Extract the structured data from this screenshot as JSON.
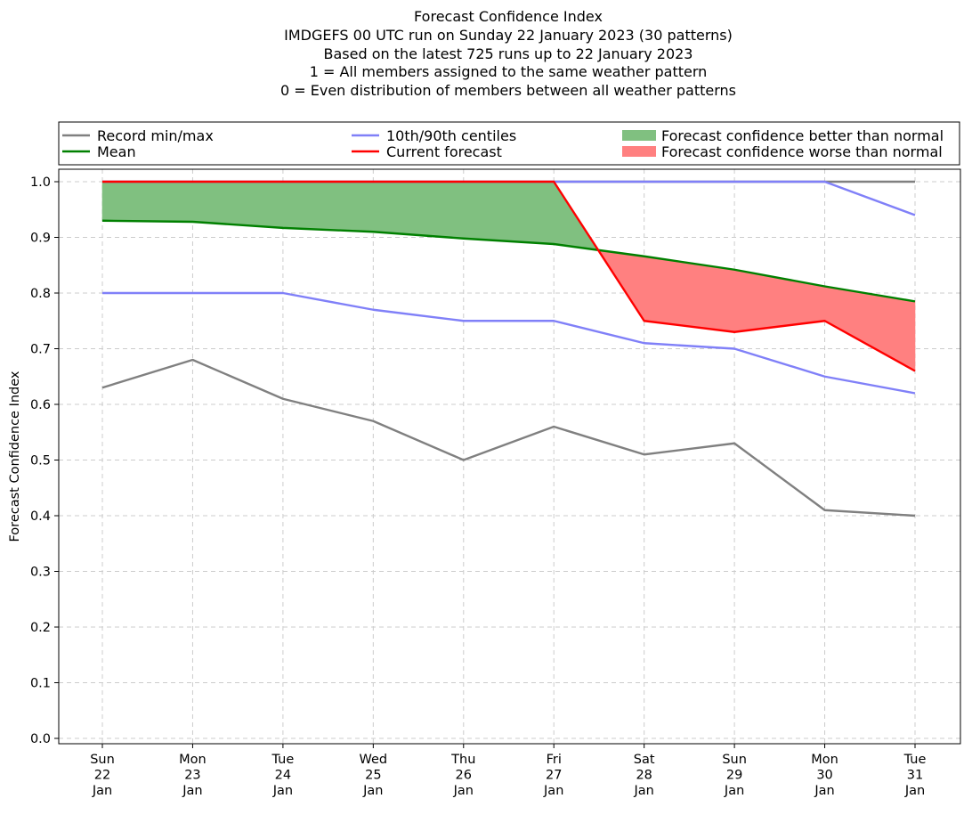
{
  "chart_data": {
    "type": "line",
    "title_lines": [
      "Forecast Confidence Index",
      "IMDGEFS 00 UTC run on Sunday 22 January 2023 (30 patterns)",
      "Based on the latest 725 runs up to 22 January 2023",
      "1 = All members assigned to the same weather pattern",
      "0 = Even distribution of members between all weather patterns"
    ],
    "ylabel": "Forecast Confidence Index",
    "ylim": [
      0,
      1
    ],
    "yticks": [
      "0.0",
      "0.1",
      "0.2",
      "0.3",
      "0.4",
      "0.5",
      "0.6",
      "0.7",
      "0.8",
      "0.9",
      "1.0"
    ],
    "categories": [
      [
        "Sun",
        "22",
        "Jan"
      ],
      [
        "Mon",
        "23",
        "Jan"
      ],
      [
        "Tue",
        "24",
        "Jan"
      ],
      [
        "Wed",
        "25",
        "Jan"
      ],
      [
        "Thu",
        "26",
        "Jan"
      ],
      [
        "Fri",
        "27",
        "Jan"
      ],
      [
        "Sat",
        "28",
        "Jan"
      ],
      [
        "Sun",
        "29",
        "Jan"
      ],
      [
        "Mon",
        "30",
        "Jan"
      ],
      [
        "Tue",
        "31",
        "Jan"
      ]
    ],
    "grid": true,
    "legend_position": "top",
    "legend": [
      {
        "label": "Record min/max",
        "kind": "line",
        "color": "#808080"
      },
      {
        "label": "10th/90th centiles",
        "kind": "line",
        "color": "#8080f8"
      },
      {
        "label": "Forecast confidence better than normal",
        "kind": "patch",
        "color": "#80c080"
      },
      {
        "label": "Mean",
        "kind": "line",
        "color": "#008000"
      },
      {
        "label": "Current forecast",
        "kind": "line",
        "color": "#ff0000"
      },
      {
        "label": "Forecast confidence worse than normal",
        "kind": "patch",
        "color": "#ff8080"
      }
    ],
    "series": [
      {
        "key": "record_min",
        "values": [
          0.63,
          0.68,
          0.61,
          0.57,
          0.5,
          0.56,
          0.51,
          0.53,
          0.41,
          0.4
        ],
        "color": "#808080"
      },
      {
        "key": "record_max",
        "values": [
          1.0,
          1.0,
          1.0,
          1.0,
          1.0,
          1.0,
          1.0,
          1.0,
          1.0,
          1.0
        ],
        "color": "#808080"
      },
      {
        "key": "p10",
        "values": [
          0.8,
          0.8,
          0.8,
          0.77,
          0.75,
          0.75,
          0.71,
          0.7,
          0.65,
          0.62
        ],
        "color": "#8080f8"
      },
      {
        "key": "p90",
        "values": [
          1.0,
          1.0,
          1.0,
          1.0,
          1.0,
          1.0,
          1.0,
          1.0,
          1.0,
          0.94
        ],
        "color": "#8080f8"
      },
      {
        "key": "mean",
        "values": [
          0.93,
          0.928,
          0.917,
          0.91,
          0.898,
          0.888,
          0.866,
          0.842,
          0.812,
          0.785
        ],
        "color": "#008000"
      },
      {
        "key": "current",
        "values": [
          1.0,
          1.0,
          1.0,
          1.0,
          1.0,
          1.0,
          0.75,
          0.73,
          0.75,
          0.66
        ],
        "color": "#ff0000"
      }
    ]
  }
}
